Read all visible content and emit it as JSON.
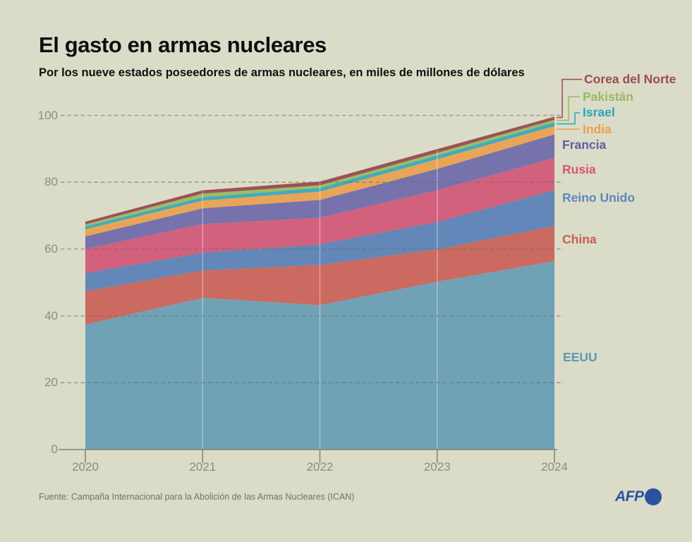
{
  "header": {
    "title": "El gasto en armas nucleares",
    "subtitle": "Por los nueve estados poseedores de armas nucleares, en miles de millones de dólares"
  },
  "chart_data": {
    "type": "area",
    "stacked": true,
    "title": "El gasto en armas nucleares",
    "subtitle": "Por los nueve estados poseedores de armas nucleares, en miles de millones de dólares",
    "categories": [
      "2020",
      "2021",
      "2022",
      "2023",
      "2024"
    ],
    "y_ticks": [
      0,
      20,
      40,
      60,
      80,
      100
    ],
    "ylim": [
      0,
      100
    ],
    "grid": "dashed-horizontal",
    "legend_position": "right",
    "series": [
      {
        "name": "EEUU",
        "color": "#6fa2b5",
        "label_color": "#5d97b5",
        "values": [
          37.4,
          45.4,
          43.2,
          50.2,
          56.4
        ]
      },
      {
        "name": "China",
        "color": "#cb6a60",
        "label_color": "#cc5a52",
        "values": [
          10.0,
          8.2,
          12.1,
          9.7,
          10.5
        ]
      },
      {
        "name": "Reino Unido",
        "color": "#6287b8",
        "label_color": "#5c88bb",
        "values": [
          5.4,
          5.3,
          6.1,
          8.2,
          10.7
        ]
      },
      {
        "name": "Rusia",
        "color": "#d2617e",
        "label_color": "#d8537a",
        "values": [
          7.2,
          8.6,
          8.0,
          9.5,
          9.7
        ]
      },
      {
        "name": "Francia",
        "color": "#7672ab",
        "label_color": "#5f5da4",
        "values": [
          3.8,
          4.7,
          5.3,
          6.4,
          7.0
        ]
      },
      {
        "name": "India",
        "color": "#e8a557",
        "label_color": "#eba14c",
        "values": [
          2.1,
          2.3,
          2.5,
          2.9,
          2.5
        ]
      },
      {
        "name": "Israel",
        "color": "#41acbc",
        "label_color": "#27a4bc",
        "values": [
          0.9,
          1.0,
          1.1,
          1.1,
          1.1
        ]
      },
      {
        "name": "Pakistán",
        "color": "#9cbd64",
        "label_color": "#97ba62",
        "values": [
          0.6,
          1.1,
          0.8,
          0.8,
          0.8
        ]
      },
      {
        "name": "Corea del Norte",
        "color": "#9c5157",
        "label_color": "#9c4a51",
        "values": [
          0.8,
          1.0,
          1.1,
          1.1,
          0.9
        ]
      }
    ]
  },
  "footer": {
    "source": "Fuente: Campaña Internacional para la Abolición de las Armas Nucleares (ICAN)",
    "logo_text": "AFP"
  },
  "colors": {
    "background": "#dadcc7",
    "title_text": "#0e0e0e",
    "axis_text": "#8b8e7c",
    "axis_line": "#7e8271",
    "gridline": "#6b6e5e",
    "source_text": "#70735f",
    "afp_blue": "#2a52a0"
  }
}
